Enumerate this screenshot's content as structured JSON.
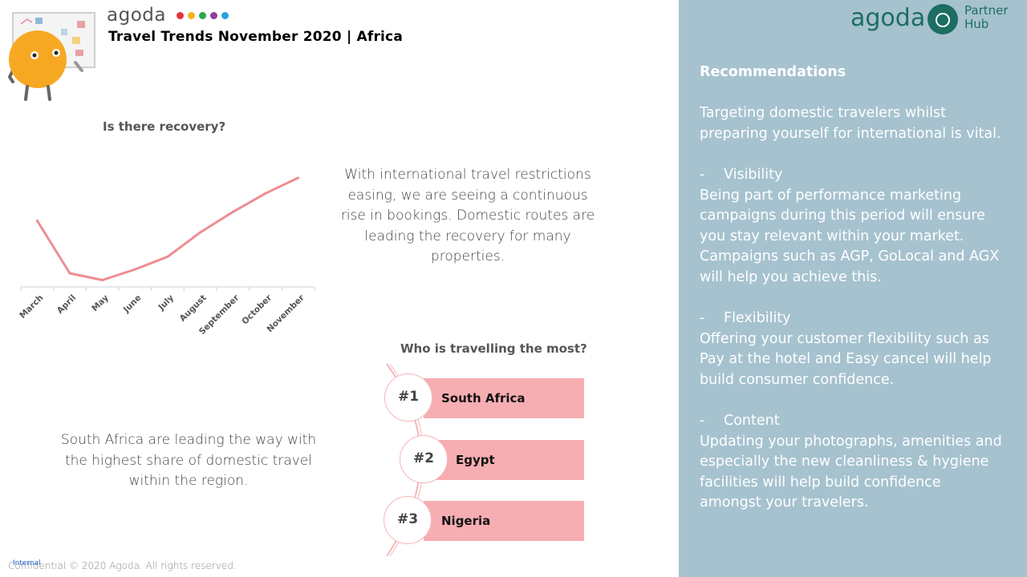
{
  "header": {
    "brand": "agoda",
    "brand_dots": [
      "#e63340",
      "#f6b21b",
      "#2da84b",
      "#8e3e9b",
      "#27a1dd"
    ],
    "title": "Travel Trends November 2020 | Africa"
  },
  "chart_section": {
    "title": "Is there recovery?"
  },
  "chart_data": {
    "type": "line",
    "title": "Is there recovery?",
    "categories": [
      "March",
      "April",
      "May",
      "June",
      "July",
      "August",
      "September",
      "October",
      "November"
    ],
    "series": [
      {
        "values": [
          68,
          14,
          7,
          18,
          31,
          56,
          77,
          96,
          112
        ]
      }
    ],
    "ylim": [
      0,
      130
    ],
    "grid": false,
    "color": "#ee8d92"
  },
  "recovery_text": "With international travel restrictions easing, we are seeing a continuous rise in bookings. Domestic routes are leading the recovery for many properties.",
  "ranking": {
    "title": "Who is travelling the most?",
    "items": [
      {
        "rank": "#1",
        "country": "South Africa"
      },
      {
        "rank": "#2",
        "country": "Egypt"
      },
      {
        "rank": "#3",
        "country": "Nigeria"
      }
    ],
    "bar_color": "#f7aeb3"
  },
  "domestic_text": "South Africa are leading the way with the highest share of domestic travel within the region.",
  "footer": {
    "confidential": "Confidential © 2020 Agoda. All rights reserved.",
    "internal": "Internal"
  },
  "panel": {
    "logo_text": "agoda",
    "partner_line1": "Partner",
    "partner_line2": "Hub",
    "heading": "Recommendations",
    "intro": "Targeting domestic travelers whilst preparing yourself for international is vital.",
    "items": [
      {
        "dash": "-",
        "title": "Visibility",
        "body": "Being part of performance marketing campaigns during this period will ensure you stay relevant within your market. Campaigns such as AGP, GoLocal and AGX will help you achieve this."
      },
      {
        "dash": "-",
        "title": "Flexibility",
        "body": "Offering your customer flexibility such as Pay at the hotel and Easy cancel will help build consumer confidence."
      },
      {
        "dash": "-",
        "title": "Content",
        "body": "Updating your photographs, amenities and especially the new cleanliness & hygiene facilities will help build confidence amongst your travelers."
      }
    ],
    "background": "#a6c2cf",
    "brand_color": "#1d6d62"
  }
}
